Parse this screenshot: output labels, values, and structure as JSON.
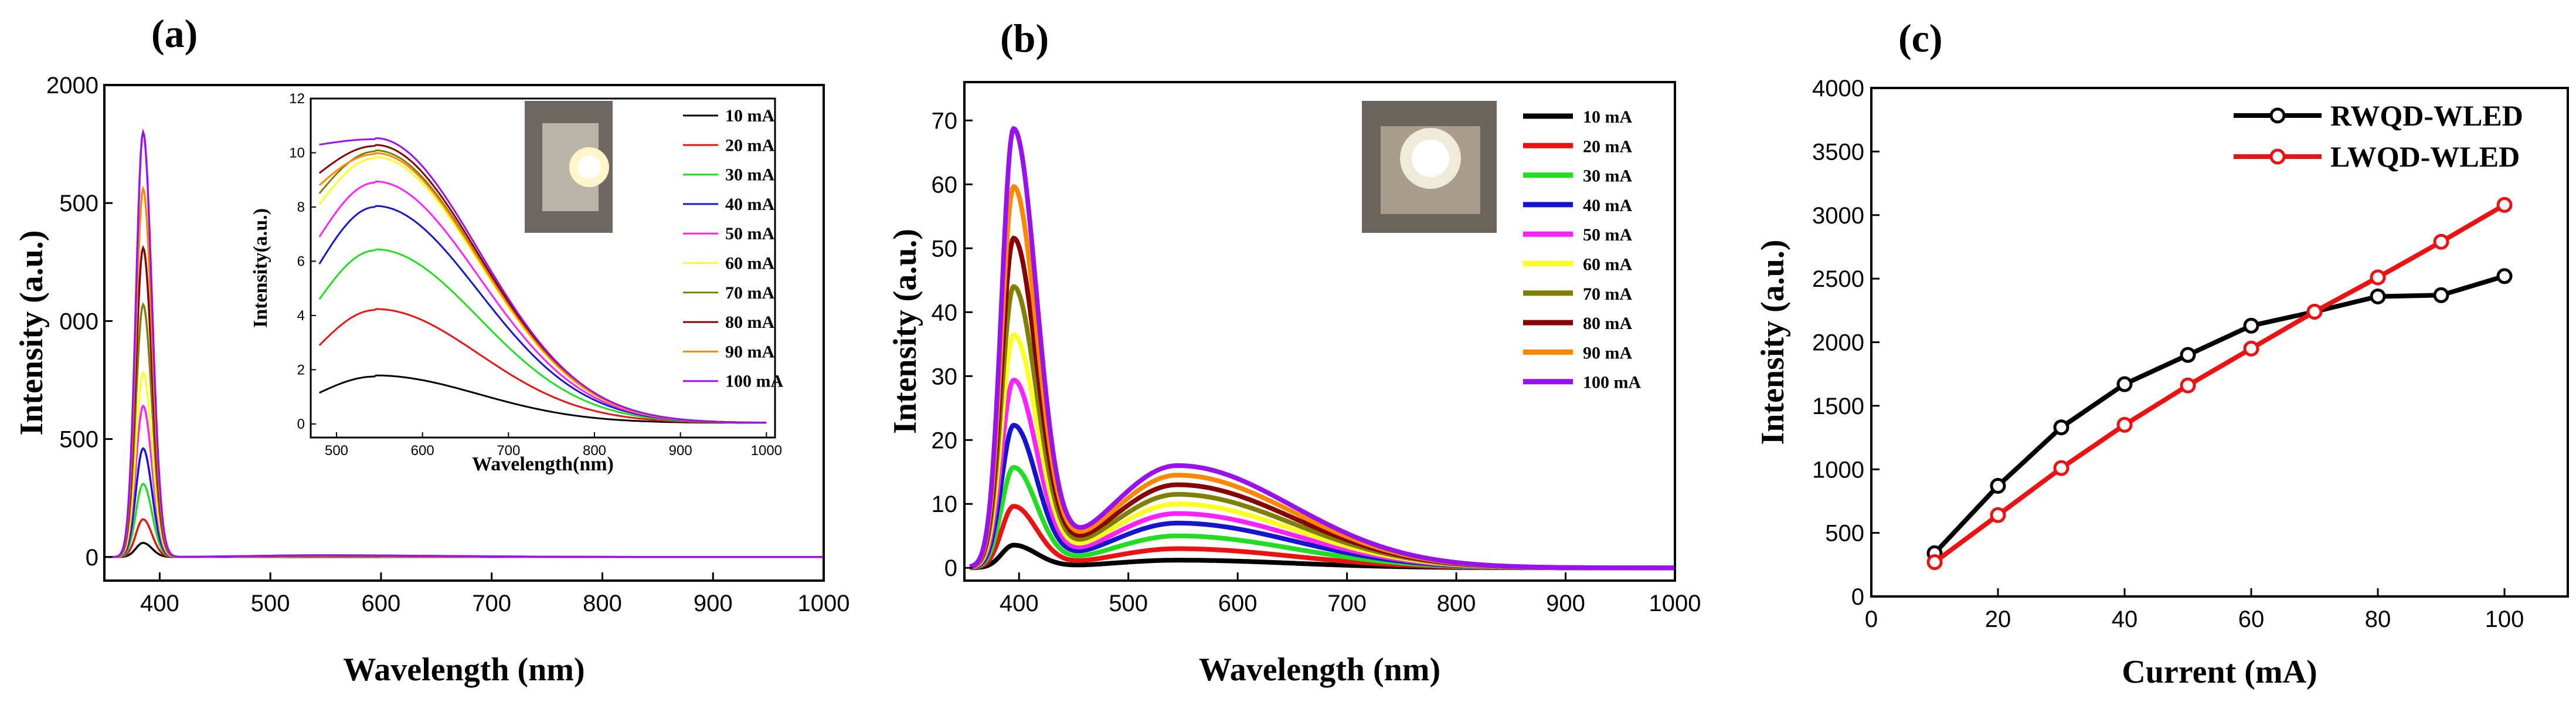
{
  "colors": {
    "10 mA": "#000000",
    "20 mA": "#ee1111",
    "30 mA": "#22dd22",
    "40 mA": "#1515d0",
    "50 mA": "#ff22ff",
    "60 mA": "#ffff22",
    "70 mA": "#7f7f00",
    "80 mA": "#880000",
    "90 mA": "#ff8800",
    "100 mA": "#9911ee",
    "RWQD-WLED": "#000000",
    "LWQD-WLED": "#ee1111"
  },
  "chart_data": [
    {
      "panel_label": "(a)",
      "type": "line",
      "xlabel": "Wavelength (nm)",
      "ylabel": "Intensity (a.u.)",
      "xlim": [
        350,
        1000
      ],
      "ylim": [
        -100,
        2000
      ],
      "x_ticks": [
        400,
        500,
        600,
        700,
        800,
        900,
        1000
      ],
      "y_ticks": [
        0,
        500,
        "000",
        500,
        2000
      ],
      "y_tick_labels": [
        "0",
        "500",
        "000",
        "500",
        "2000"
      ],
      "peak_nm": 385,
      "series": [
        {
          "name": "10 mA",
          "peak": 60
        },
        {
          "name": "20 mA",
          "peak": 160
        },
        {
          "name": "30 mA",
          "peak": 310
        },
        {
          "name": "40 mA",
          "peak": 460
        },
        {
          "name": "50 mA",
          "peak": 640
        },
        {
          "name": "60 mA",
          "peak": 780
        },
        {
          "name": "70 mA",
          "peak": 1070
        },
        {
          "name": "80 mA",
          "peak": 1310
        },
        {
          "name": "90 mA",
          "peak": 1560
        },
        {
          "name": "100 mA",
          "peak": 1800
        }
      ],
      "inset": {
        "type": "line",
        "xlabel": "Wavelength(nm)",
        "ylabel": "Intensity(a.u.)",
        "xlim": [
          470,
          1010
        ],
        "ylim": [
          -0.5,
          12
        ],
        "x_ticks": [
          500,
          600,
          700,
          800,
          900,
          1000
        ],
        "y_ticks": [
          0,
          2,
          4,
          6,
          8,
          10,
          12
        ],
        "peak_nm": 545,
        "series": [
          {
            "name": "10 mA",
            "start": 1.15,
            "peak": 1.75
          },
          {
            "name": "20 mA",
            "start": 2.9,
            "peak": 4.2
          },
          {
            "name": "30 mA",
            "start": 4.6,
            "peak": 6.4
          },
          {
            "name": "40 mA",
            "start": 5.9,
            "peak": 8.0
          },
          {
            "name": "50 mA",
            "start": 6.9,
            "peak": 8.9
          },
          {
            "name": "60 mA",
            "start": 8.1,
            "peak": 9.8
          },
          {
            "name": "70 mA",
            "start": 8.5,
            "peak": 10.05
          },
          {
            "name": "80 mA",
            "start": 9.25,
            "peak": 10.25
          },
          {
            "name": "90 mA",
            "start": 8.8,
            "peak": 9.95
          },
          {
            "name": "100 mA",
            "start": 10.3,
            "peak": 10.5
          }
        ]
      }
    },
    {
      "panel_label": "(b)",
      "type": "line",
      "xlabel": "Wavelength (nm)",
      "ylabel": "Intensity (a.u.)",
      "xlim": [
        350,
        1000
      ],
      "ylim": [
        -2,
        76
      ],
      "x_ticks": [
        400,
        500,
        600,
        700,
        800,
        900,
        1000
      ],
      "y_ticks": [
        0,
        10,
        20,
        30,
        40,
        50,
        60,
        70
      ],
      "blue_peak_nm": 395,
      "yellow_peak_nm": 545,
      "series": [
        {
          "name": "10 mA",
          "blue_peak": 3.5,
          "yellow_peak": 1.2
        },
        {
          "name": "20 mA",
          "blue_peak": 9.5,
          "yellow_peak": 3.0
        },
        {
          "name": "30 mA",
          "blue_peak": 15.5,
          "yellow_peak": 5.0
        },
        {
          "name": "40 mA",
          "blue_peak": 22,
          "yellow_peak": 7.0
        },
        {
          "name": "50 mA",
          "blue_peak": 29,
          "yellow_peak": 8.5
        },
        {
          "name": "60 mA",
          "blue_peak": 36,
          "yellow_peak": 10.0
        },
        {
          "name": "70 mA",
          "blue_peak": 43.5,
          "yellow_peak": 11.5
        },
        {
          "name": "80 mA",
          "blue_peak": 51,
          "yellow_peak": 13.0
        },
        {
          "name": "90 mA",
          "blue_peak": 59,
          "yellow_peak": 14.5
        },
        {
          "name": "100 mA",
          "blue_peak": 68,
          "yellow_peak": 16.0
        }
      ]
    },
    {
      "panel_label": "(c)",
      "type": "line",
      "xlabel": "Current (mA)",
      "ylabel": "Intensity (a.u.)",
      "xlim": [
        0,
        110
      ],
      "ylim": [
        0,
        4000
      ],
      "x_ticks": [
        0,
        20,
        40,
        60,
        80,
        100
      ],
      "y_ticks": [
        0,
        500,
        1000,
        1500,
        2000,
        2500,
        3000,
        3500,
        4000
      ],
      "x": [
        10,
        20,
        30,
        40,
        50,
        60,
        70,
        80,
        90,
        100
      ],
      "series": [
        {
          "name": "RWQD-WLED",
          "values": [
            340,
            870,
            1330,
            1670,
            1900,
            2130,
            2240,
            2360,
            2370,
            2520
          ]
        },
        {
          "name": "LWQD-WLED",
          "values": [
            270,
            640,
            1010,
            1350,
            1660,
            1950,
            2240,
            2510,
            2790,
            3080
          ]
        }
      ]
    }
  ]
}
